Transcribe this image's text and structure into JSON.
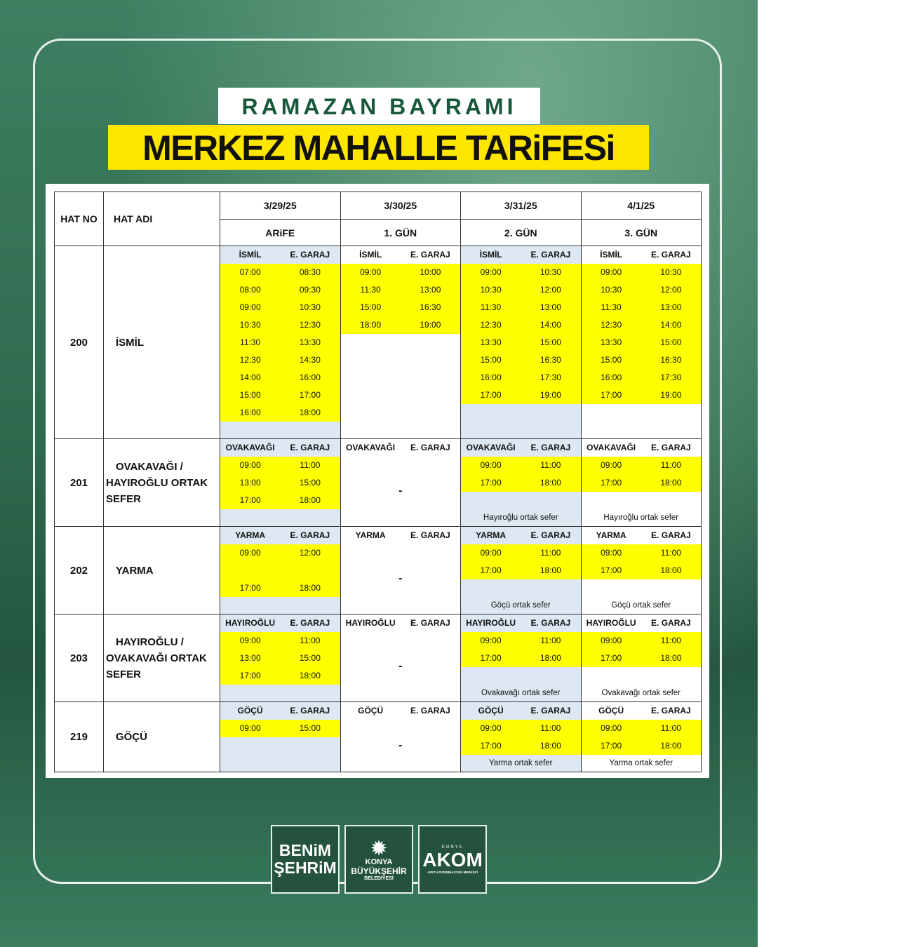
{
  "title_top": "RAMAZAN BAYRAMI",
  "title_main": "MERKEZ MAHALLE TARiFESi",
  "header": {
    "hat_no": "HAT NO",
    "hat_adi": "HAT ADI",
    "days": [
      {
        "date": "3/29/25",
        "label": "ARiFE"
      },
      {
        "date": "3/30/25",
        "label": "1. GÜN"
      },
      {
        "date": "3/31/25",
        "label": "2. GÜN"
      },
      {
        "date": "4/1/25",
        "label": "3. GÜN"
      }
    ]
  },
  "groups": [
    {
      "no": "200",
      "name": "İSMİL",
      "rows": 11,
      "days": [
        {
          "h": [
            "İSMİL",
            "E. GARAJ"
          ],
          "times": [
            [
              "07:00",
              "08:30"
            ],
            [
              "08:00",
              "09:30"
            ],
            [
              "09:00",
              "10:30"
            ],
            [
              "10:30",
              "12:30"
            ],
            [
              "11:30",
              "13:30"
            ],
            [
              "12:30",
              "14:30"
            ],
            [
              "14:00",
              "16:00"
            ],
            [
              "15:00",
              "17:00"
            ],
            [
              "16:00",
              "18:00"
            ]
          ]
        },
        {
          "h": [
            "İSMİL",
            "E. GARAJ"
          ],
          "times": [
            [
              "09:00",
              "10:00"
            ],
            [
              "11:30",
              "13:00"
            ],
            [
              "15:00",
              "16:30"
            ],
            [
              "18:00",
              "19:00"
            ]
          ]
        },
        {
          "h": [
            "İSMİL",
            "E. GARAJ"
          ],
          "times": [
            [
              "09:00",
              "10:30"
            ],
            [
              "10:30",
              "12:00"
            ],
            [
              "11:30",
              "13:00"
            ],
            [
              "12:30",
              "14:00"
            ],
            [
              "13:30",
              "15:00"
            ],
            [
              "15:00",
              "16:30"
            ],
            [
              "16:00",
              "17:30"
            ],
            [
              "17:00",
              "19:00"
            ]
          ]
        },
        {
          "h": [
            "İSMİL",
            "E. GARAJ"
          ],
          "times": [
            [
              "09:00",
              "10:30"
            ],
            [
              "10:30",
              "12:00"
            ],
            [
              "11:30",
              "13:00"
            ],
            [
              "12:30",
              "14:00"
            ],
            [
              "13:30",
              "15:00"
            ],
            [
              "15:00",
              "16:30"
            ],
            [
              "16:00",
              "17:30"
            ],
            [
              "17:00",
              "19:00"
            ]
          ]
        }
      ]
    },
    {
      "no": "201",
      "name": "OVAKAVAĞI /\nHAYIROĞLU ORTAK\nSEFER",
      "rows": 5,
      "days": [
        {
          "h": [
            "OVAKAVAĞI",
            "E. GARAJ"
          ],
          "times": [
            [
              "09:00",
              "11:00"
            ],
            [
              "13:00",
              "15:00"
            ],
            [
              "17:00",
              "18:00"
            ]
          ]
        },
        {
          "h": [
            "OVAKAVAĞI",
            "E. GARAJ"
          ],
          "times": [],
          "dash": "-"
        },
        {
          "h": [
            "OVAKAVAĞI",
            "E. GARAJ"
          ],
          "times": [
            [
              "09:00",
              "11:00"
            ],
            [
              "17:00",
              "18:00"
            ]
          ],
          "note": "Hayıroğlu ortak sefer"
        },
        {
          "h": [
            "OVAKAVAĞI",
            "E. GARAJ"
          ],
          "times": [
            [
              "09:00",
              "11:00"
            ],
            [
              "17:00",
              "18:00"
            ]
          ],
          "note": "Hayıroğlu ortak sefer"
        }
      ]
    },
    {
      "no": "202",
      "name": "YARMA",
      "rows": 5,
      "days": [
        {
          "h": [
            "YARMA",
            "E. GARAJ"
          ],
          "times": [
            [
              "09:00",
              "12:00"
            ],
            [
              "",
              ""
            ],
            [
              "17:00",
              "18:00"
            ]
          ]
        },
        {
          "h": [
            "YARMA",
            "E. GARAJ"
          ],
          "times": [],
          "dash": "-"
        },
        {
          "h": [
            "YARMA",
            "E. GARAJ"
          ],
          "times": [
            [
              "09:00",
              "11:00"
            ],
            [
              "17:00",
              "18:00"
            ]
          ],
          "note": "Göçü ortak sefer"
        },
        {
          "h": [
            "YARMA",
            "E. GARAJ"
          ],
          "times": [
            [
              "09:00",
              "11:00"
            ],
            [
              "17:00",
              "18:00"
            ]
          ],
          "note": "Göçü ortak sefer"
        }
      ]
    },
    {
      "no": "203",
      "name": "HAYIROĞLU /\nOVAKAVAĞI ORTAK\nSEFER",
      "rows": 5,
      "days": [
        {
          "h": [
            "HAYIROĞLU",
            "E. GARAJ"
          ],
          "times": [
            [
              "09:00",
              "11:00"
            ],
            [
              "13:00",
              "15:00"
            ],
            [
              "17:00",
              "18:00"
            ]
          ]
        },
        {
          "h": [
            "HAYIROĞLU",
            "E. GARAJ"
          ],
          "times": [],
          "dash": "-"
        },
        {
          "h": [
            "HAYIROĞLU",
            "E. GARAJ"
          ],
          "times": [
            [
              "09:00",
              "11:00"
            ],
            [
              "17:00",
              "18:00"
            ]
          ],
          "note": "Ovakavağı ortak sefer"
        },
        {
          "h": [
            "HAYIROĞLU",
            "E. GARAJ"
          ],
          "times": [
            [
              "09:00",
              "11:00"
            ],
            [
              "17:00",
              "18:00"
            ]
          ],
          "note": "Ovakavağı ortak sefer"
        }
      ]
    },
    {
      "no": "219",
      "name": "GÖÇÜ",
      "rows": 4,
      "days": [
        {
          "h": [
            "GÖÇÜ",
            "E. GARAJ"
          ],
          "times": [
            [
              "09:00",
              "15:00"
            ]
          ]
        },
        {
          "h": [
            "GÖÇÜ",
            "E. GARAJ"
          ],
          "times": [],
          "dash": "-"
        },
        {
          "h": [
            "GÖÇÜ",
            "E. GARAJ"
          ],
          "times": [
            [
              "09:00",
              "11:00"
            ],
            [
              "17:00",
              "18:00"
            ]
          ],
          "note": "Yarma ortak sefer"
        },
        {
          "h": [
            "GÖÇÜ",
            "E. GARAJ"
          ],
          "times": [
            [
              "09:00",
              "11:00"
            ],
            [
              "17:00",
              "18:00"
            ]
          ],
          "note": "Yarma ortak sefer"
        }
      ]
    }
  ],
  "logos": {
    "benim": "BENiM\nŞEHRiM",
    "konya": [
      "KONYA",
      "BÜYÜKŞEHİR",
      "BELEDİYESİ"
    ],
    "akom": [
      "KONYA",
      "AKOM",
      "AFET KOORDİNASYON MERKEZİ"
    ]
  }
}
